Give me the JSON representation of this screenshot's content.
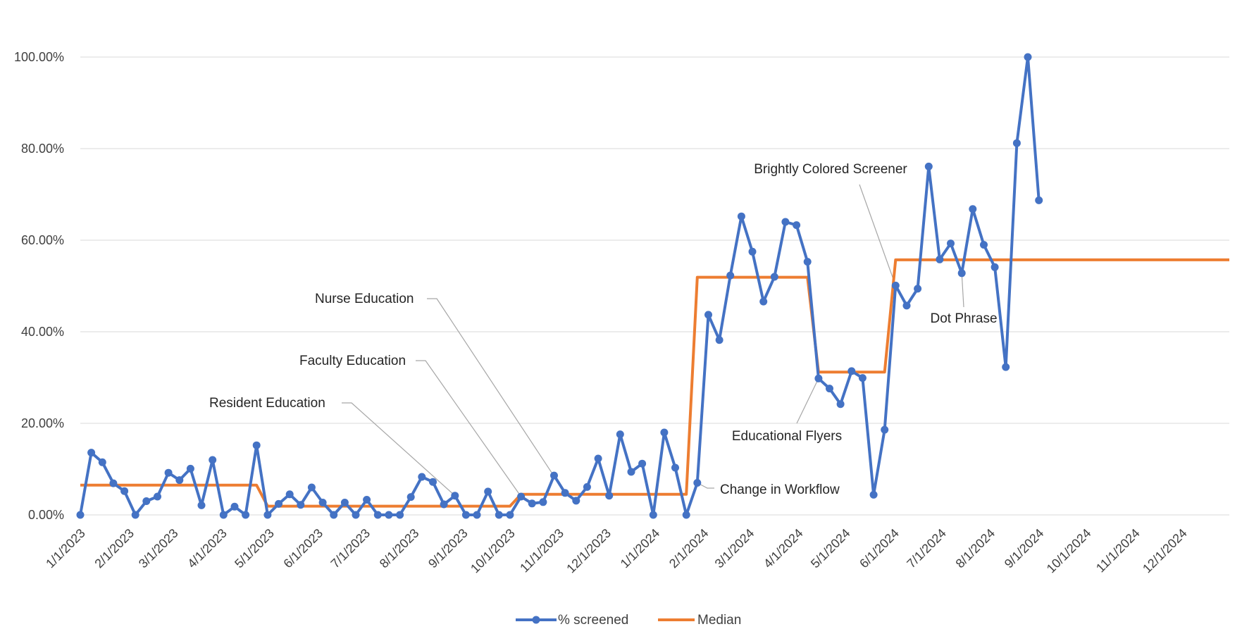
{
  "chart_data": {
    "type": "line",
    "title": "",
    "xlabel": "",
    "ylabel": "",
    "ylim": [
      0,
      100
    ],
    "y_ticks": [
      "0.00%",
      "20.00%",
      "40.00%",
      "60.00%",
      "80.00%",
      "100.00%"
    ],
    "x_ticks": [
      "1/1/2023",
      "2/1/2023",
      "3/1/2023",
      "4/1/2023",
      "5/1/2023",
      "6/1/2023",
      "7/1/2023",
      "8/1/2023",
      "9/1/2023",
      "10/1/2023",
      "11/1/2023",
      "12/1/2023",
      "1/1/2024",
      "2/1/2024",
      "3/1/2024",
      "4/1/2024",
      "5/1/2024",
      "6/1/2024",
      "7/1/2024",
      "8/1/2024",
      "9/1/2024",
      "10/1/2024",
      "11/1/2024",
      "12/1/2024"
    ],
    "grid": true,
    "legend": "bottom",
    "colors": {
      "screened": "#4472C4",
      "median": "#ED7D31",
      "grid": "#d9d9d9",
      "leader": "#a6a6a6"
    },
    "series": [
      {
        "name": "% screened",
        "points": [
          [
            "2023-01-01",
            0
          ],
          [
            "2023-01-08",
            13.6
          ],
          [
            "2023-01-15",
            11.5
          ],
          [
            "2023-01-22",
            6.9
          ],
          [
            "2023-01-29",
            5.2
          ],
          [
            "2023-02-05",
            0
          ],
          [
            "2023-02-12",
            3
          ],
          [
            "2023-02-19",
            4
          ],
          [
            "2023-02-26",
            9.2
          ],
          [
            "2023-03-05",
            7.6
          ],
          [
            "2023-03-12",
            10.1
          ],
          [
            "2023-03-19",
            2.1
          ],
          [
            "2023-03-26",
            12
          ],
          [
            "2023-04-02",
            0
          ],
          [
            "2023-04-09",
            1.8
          ],
          [
            "2023-04-16",
            0
          ],
          [
            "2023-04-23",
            15.2
          ],
          [
            "2023-04-30",
            0
          ],
          [
            "2023-05-07",
            2.4
          ],
          [
            "2023-05-14",
            4.5
          ],
          [
            "2023-05-21",
            2.2
          ],
          [
            "2023-05-28",
            6
          ],
          [
            "2023-06-04",
            2.7
          ],
          [
            "2023-06-11",
            0
          ],
          [
            "2023-06-18",
            2.7
          ],
          [
            "2023-06-25",
            0
          ],
          [
            "2023-07-02",
            3.3
          ],
          [
            "2023-07-09",
            0
          ],
          [
            "2023-07-16",
            0
          ],
          [
            "2023-07-23",
            0
          ],
          [
            "2023-07-30",
            3.9
          ],
          [
            "2023-08-06",
            8.3
          ],
          [
            "2023-08-13",
            7.2
          ],
          [
            "2023-08-20",
            2.3
          ],
          [
            "2023-08-27",
            4.2
          ],
          [
            "2023-09-03",
            0
          ],
          [
            "2023-09-10",
            0
          ],
          [
            "2023-09-17",
            5.1
          ],
          [
            "2023-09-24",
            0
          ],
          [
            "2023-10-01",
            0
          ],
          [
            "2023-10-08",
            4
          ],
          [
            "2023-10-15",
            2.5
          ],
          [
            "2023-10-22",
            2.8
          ],
          [
            "2023-10-29",
            8.6
          ],
          [
            "2023-11-05",
            4.8
          ],
          [
            "2023-11-12",
            3.1
          ],
          [
            "2023-11-19",
            6.1
          ],
          [
            "2023-11-26",
            12.3
          ],
          [
            "2023-12-03",
            4.2
          ],
          [
            "2023-12-10",
            17.6
          ],
          [
            "2023-12-17",
            9.4
          ],
          [
            "2023-12-24",
            11.2
          ],
          [
            "2023-12-31",
            0
          ],
          [
            "2024-01-07",
            18
          ],
          [
            "2024-01-14",
            10.3
          ],
          [
            "2024-01-21",
            0
          ],
          [
            "2024-01-28",
            7
          ],
          [
            "2024-02-04",
            43.7
          ],
          [
            "2024-02-11",
            38.2
          ],
          [
            "2024-02-18",
            52.3
          ],
          [
            "2024-02-25",
            65.2
          ],
          [
            "2024-03-03",
            57.5
          ],
          [
            "2024-03-10",
            46.6
          ],
          [
            "2024-03-17",
            52
          ],
          [
            "2024-03-24",
            64
          ],
          [
            "2024-03-31",
            63.3
          ],
          [
            "2024-04-07",
            55.3
          ],
          [
            "2024-04-14",
            29.8
          ],
          [
            "2024-04-21",
            27.6
          ],
          [
            "2024-04-28",
            24.2
          ],
          [
            "2024-05-05",
            31.4
          ],
          [
            "2024-05-12",
            29.9
          ],
          [
            "2024-05-19",
            4.4
          ],
          [
            "2024-05-26",
            18.6
          ],
          [
            "2024-06-02",
            50.1
          ],
          [
            "2024-06-09",
            45.7
          ],
          [
            "2024-06-16",
            49.4
          ],
          [
            "2024-06-23",
            76.1
          ],
          [
            "2024-06-30",
            55.8
          ],
          [
            "2024-07-07",
            59.3
          ],
          [
            "2024-07-14",
            52.8
          ],
          [
            "2024-07-21",
            66.8
          ],
          [
            "2024-07-28",
            59
          ],
          [
            "2024-08-04",
            54.1
          ],
          [
            "2024-08-11",
            32.3
          ],
          [
            "2024-08-18",
            81.2
          ],
          [
            "2024-08-25",
            100
          ],
          [
            "2024-09-01",
            68.7
          ]
        ]
      },
      {
        "name": "Median",
        "points": [
          [
            "2023-01-01",
            6.5
          ],
          [
            "2023-04-23",
            6.5
          ],
          [
            "2023-04-30",
            1.9
          ],
          [
            "2023-10-01",
            1.9
          ],
          [
            "2023-10-08",
            4.5
          ],
          [
            "2024-01-21",
            4.5
          ],
          [
            "2024-01-28",
            51.9
          ],
          [
            "2024-04-07",
            51.9
          ],
          [
            "2024-04-14",
            31.2
          ],
          [
            "2024-05-26",
            31.2
          ],
          [
            "2024-06-02",
            55.7
          ],
          [
            "2024-12-31",
            55.7
          ]
        ]
      }
    ],
    "annotations": [
      {
        "text": "Resident Education",
        "target": [
          "2023-08-27",
          4.2
        ]
      },
      {
        "text": "Faculty Education",
        "target": [
          "2023-10-08",
          4
        ]
      },
      {
        "text": "Nurse Education",
        "target": [
          "2023-11-05",
          4.8
        ]
      },
      {
        "text": "Change in Workflow",
        "target": [
          "2024-01-28",
          7
        ]
      },
      {
        "text": "Educational Flyers",
        "target": [
          "2024-04-14",
          29.8
        ]
      },
      {
        "text": "Brightly Colored Screener",
        "target": [
          "2024-06-02",
          50.1
        ]
      },
      {
        "text": "Dot Phrase",
        "target": [
          "2024-07-14",
          52.8
        ]
      }
    ]
  }
}
